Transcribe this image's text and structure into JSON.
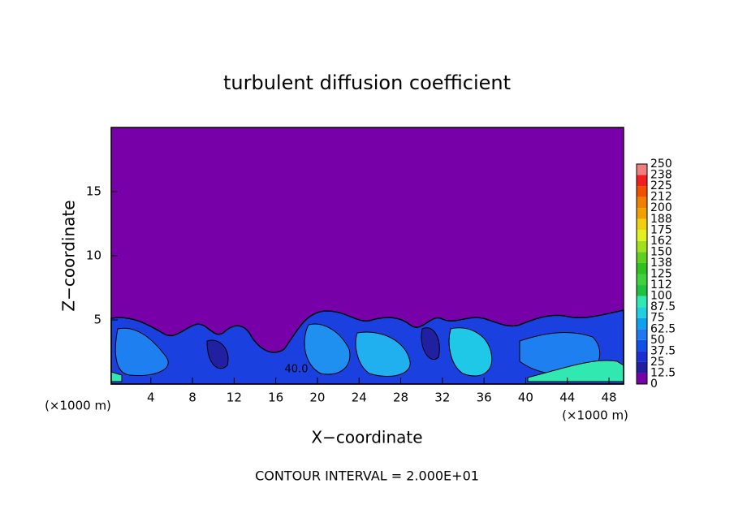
{
  "chart_data": {
    "type": "contour",
    "title": "turbulent diffusion coefficient",
    "x_label": "X−coordinate",
    "y_label": "Z−coordinate",
    "x_unit_label": "(×1000 m)",
    "y_unit_label": "(×1000 m)",
    "annotation": "CONTOUR INTERVAL = 2.000E+01",
    "contour_label": "40.0",
    "xlim": [
      0.2,
      49.4
    ],
    "xticks": [
      4,
      8,
      12,
      16,
      20,
      24,
      28,
      32,
      36,
      40,
      44,
      48
    ],
    "ylim": [
      0,
      20
    ],
    "yticks": [
      5,
      10,
      15
    ],
    "colorbar_ticks": [
      0,
      12.5,
      25,
      37.5,
      50,
      62.5,
      75,
      87.5,
      100,
      {
        "value": 112.5,
        "label": "112"
      },
      125,
      {
        "value": 137.5,
        "label": "138"
      },
      150,
      {
        "value": 162.5,
        "label": "162"
      },
      175,
      {
        "value": 187.5,
        "label": "188"
      },
      200,
      {
        "value": 212.5,
        "label": "212"
      },
      225,
      {
        "value": 237.5,
        "label": "238"
      },
      250
    ],
    "colorbar_colors": [
      "#7800a8",
      "#2020a0",
      "#1a30d0",
      "#1050e8",
      "#1e78f0",
      "#10a0f0",
      "#20d0e0",
      "#30e8b0",
      "#20c040",
      "#40d040",
      "#30c020",
      "#60d020",
      "#a0e020",
      "#e0f020",
      "#f0d010",
      "#f0a000",
      "#f08000",
      "#f05000",
      "#f02020",
      "#f08080"
    ]
  }
}
